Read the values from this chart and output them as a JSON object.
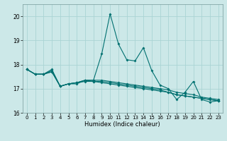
{
  "xlabel": "Humidex (Indice chaleur)",
  "ylabel": "",
  "background_color": "#cce8e8",
  "grid_color": "#aad4d4",
  "line_color": "#007070",
  "xlim": [
    -0.5,
    23.5
  ],
  "ylim": [
    16.0,
    20.5
  ],
  "yticks": [
    16,
    17,
    18,
    19,
    20
  ],
  "xticks": [
    0,
    1,
    2,
    3,
    4,
    5,
    6,
    7,
    8,
    9,
    10,
    11,
    12,
    13,
    14,
    15,
    16,
    17,
    18,
    19,
    20,
    21,
    22,
    23
  ],
  "series": [
    [
      17.8,
      17.6,
      17.6,
      17.7,
      17.1,
      17.2,
      17.2,
      17.35,
      17.35,
      18.45,
      20.1,
      18.85,
      18.2,
      18.15,
      18.7,
      17.75,
      17.15,
      17.0,
      16.55,
      16.85,
      17.3,
      16.55,
      16.45,
      16.5
    ],
    [
      17.8,
      17.6,
      17.6,
      17.8,
      17.1,
      17.2,
      17.25,
      17.35,
      17.35,
      17.35,
      17.3,
      17.25,
      17.2,
      17.15,
      17.1,
      17.05,
      17.0,
      16.95,
      16.85,
      16.8,
      16.75,
      16.65,
      16.6,
      16.55
    ],
    [
      17.8,
      17.6,
      17.6,
      17.75,
      17.1,
      17.2,
      17.25,
      17.35,
      17.3,
      17.3,
      17.25,
      17.2,
      17.15,
      17.1,
      17.05,
      17.0,
      16.95,
      16.85,
      16.75,
      16.7,
      16.65,
      16.6,
      16.55,
      16.5
    ],
    [
      17.8,
      17.6,
      17.6,
      17.7,
      17.1,
      17.2,
      17.25,
      17.3,
      17.3,
      17.25,
      17.2,
      17.15,
      17.1,
      17.05,
      17.0,
      16.95,
      16.9,
      16.85,
      16.75,
      16.7,
      16.65,
      16.6,
      16.55,
      16.5
    ]
  ],
  "xlabel_fontsize": 6,
  "tick_fontsize": 5,
  "ytick_fontsize": 5.5,
  "marker_size": 2.0,
  "line_width": 0.8
}
